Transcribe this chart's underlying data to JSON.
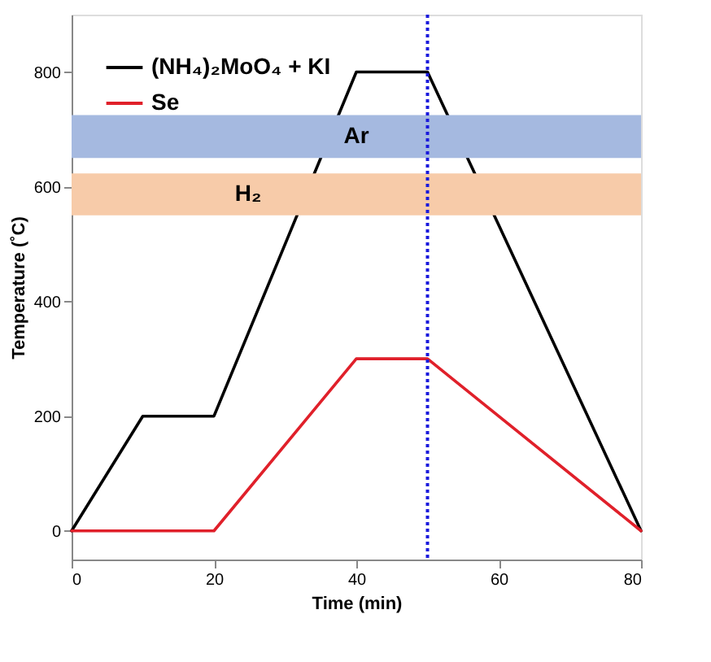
{
  "chart_data": {
    "type": "line",
    "xlabel": "Time (min)",
    "ylabel": "Temperature (˚C)",
    "series": [
      {
        "name": "(NH₄)₂MoO₄ + KI",
        "color": "#000000",
        "x": [
          0,
          10,
          20,
          40,
          50,
          80
        ],
        "values": [
          0,
          200,
          200,
          800,
          800,
          0
        ]
      },
      {
        "name": "Se",
        "color": "#e0202a",
        "x": [
          0,
          20,
          40,
          50,
          80
        ],
        "values": [
          0,
          0,
          300,
          300,
          0
        ]
      }
    ],
    "xlim": [
      0,
      80
    ],
    "xticks": [
      0,
      20,
      40,
      60,
      80
    ],
    "ylim": [
      -50,
      900
    ],
    "yticks": [
      0,
      200,
      400,
      600,
      800
    ],
    "ref_lines": [
      {
        "axis": "x",
        "value": 50,
        "label": null,
        "color": "#1a1adc",
        "line_style": "dotted"
      }
    ],
    "bands": [
      {
        "axis": "y",
        "from": 650,
        "to": 725,
        "label": "Ar",
        "color": "#a5b9e0"
      },
      {
        "axis": "y",
        "from": 550,
        "to": 623,
        "label": "H₂",
        "color": "#f7cba9"
      }
    ],
    "grid": false,
    "legend": "top left",
    "marker": "none",
    "line_style": "solid"
  }
}
